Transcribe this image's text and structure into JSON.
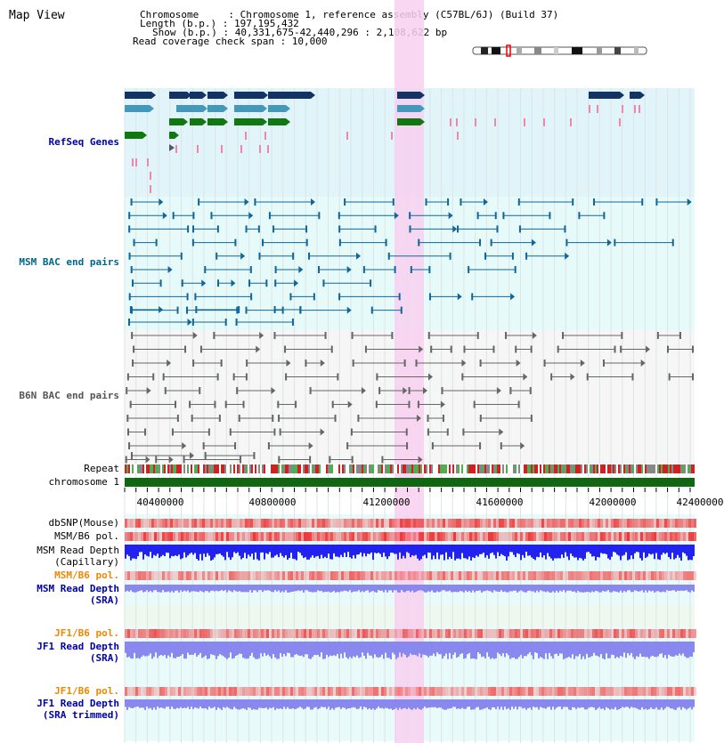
{
  "view": {
    "title": "Map View",
    "info": {
      "chromosome": "Chromosome     : Chromosome 1, reference assembly (C57BL/6J) (Build 37)",
      "length": "Length (b.p.) : 197,195,432",
      "show": "Show (b.p.) : 40,331,675-42,440,296 : 2,108,622 bp",
      "coverage": "Read coverage check span : 10,000"
    }
  },
  "tracks": {
    "refseq": "RefSeq Genes",
    "msm_bac": "MSM BAC end pairs",
    "b6n_bac": "B6N BAC end pairs",
    "repeat": "Repeat",
    "chromosome": "chromosome 1",
    "dbsnp": "dbSNP(Mouse)",
    "msm_b6_pol": "MSM/B6 pol.",
    "msm_depth_cap_1": "MSM Read Depth",
    "msm_depth_cap_2": "(Capillary)",
    "msm_b6_pol_sra": "MSM/B6 pol.",
    "msm_depth_sra_1": "MSM Read Depth",
    "msm_depth_sra_2": "(SRA)",
    "jf1_b6_pol": "JF1/B6 pol.",
    "jf1_depth_1": "JF1 Read Depth",
    "jf1_depth_2": "(SRA)",
    "jf1_b6_pol_trim": "JF1/B6 pol.",
    "jf1_trim_1": "JF1 Read Depth",
    "jf1_trim_2": "(SRA trimmed)"
  },
  "axis": {
    "ticks": [
      "40400000",
      "40800000",
      "41200000",
      "41600000",
      "42000000",
      "42400000"
    ]
  },
  "colors": {
    "refseq_bg": "#e0f4fa",
    "msm_bg": "#e6fafa",
    "highlight": "#f8d0f0",
    "gene_navy": "#113366",
    "gene_teal": "#4499bb",
    "gene_green": "#117711",
    "pink_mark": "#ee88aa",
    "chromosome_bar": "#116611",
    "pol_red": "#ee4444",
    "depth_blue": "#2222ee",
    "depth_light_blue": "#8888ee"
  }
}
